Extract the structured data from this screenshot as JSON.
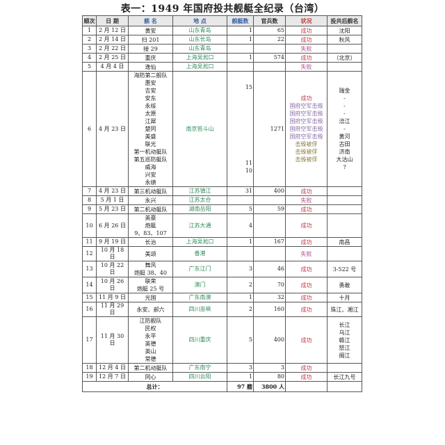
{
  "title": "表一：1949 年国府投共舰艇全纪录（台湾）",
  "headers": [
    "顺次",
    "日 期",
    "舰 名",
    "地 点",
    "舰艇数",
    "官兵数",
    "状况",
    "投共后舰名"
  ],
  "rows": [
    {
      "no": "1",
      "date": "2 月 12 日",
      "ships": [
        "黄安"
      ],
      "loc": "山东青岛",
      "count": "1",
      "troops": "65",
      "status": [
        "成功"
      ],
      "after": [
        "沈阳"
      ]
    },
    {
      "no": "2",
      "date": "2 月 14 日",
      "ships": [
        "扫 201"
      ],
      "loc": "山东长岛",
      "count": "1",
      "troops": "22",
      "status": [
        "成功"
      ],
      "after": [
        "秋风"
      ]
    },
    {
      "no": "3",
      "date": "2 月 22 日",
      "ships": [
        "接 29"
      ],
      "loc": "山东青岛",
      "count": "",
      "troops": "",
      "status": [
        "失败"
      ],
      "after": [
        ""
      ]
    },
    {
      "no": "4",
      "date": "2 月 25 日",
      "ships": [
        "重庆"
      ],
      "loc": "上海吴淞口",
      "count": "1",
      "troops": "574",
      "status": [
        "成功"
      ],
      "after": [
        "（北京）"
      ]
    },
    {
      "no": "5",
      "date": "4 月 4 日",
      "ships": [
        "逸仙"
      ],
      "loc": "上海吴淞口",
      "count": "",
      "troops": "",
      "status": [
        "失败"
      ],
      "after": [
        ""
      ]
    },
    {
      "no": "6",
      "date": "4 月 23 日",
      "ships": [
        "海防第二舰队",
        "惠安",
        "吉安",
        "安东",
        "永绥",
        "太原",
        "江犀",
        "楚同",
        "美盛",
        "联光",
        "第一机动艇队",
        "第五巡防艇队",
        "威海",
        "兴安",
        "永绩"
      ],
      "loc": "南京笆斗山",
      "count": [
        "15",
        "11",
        "10"
      ],
      "troops": "1271",
      "status": [
        "成功",
        "国府空军击毁",
        "国府空军击毁",
        "国府空军击毁",
        "国府空军击毁",
        "国府空军击毁",
        "击毁被俘",
        "击毁被俘",
        "击毁被俘"
      ],
      "after": [
        "瑞金",
        "-",
        "-",
        "-",
        "涪江",
        "-",
        "黄河",
        "古田",
        "济南",
        "大沽山",
        "?"
      ]
    },
    {
      "no": "7",
      "date": "4 月 23 日",
      "ships": [
        "第三机动艇队"
      ],
      "loc": "江苏镇江",
      "count": "31",
      "troops": "400",
      "status": [
        "成功"
      ],
      "after": [
        ""
      ]
    },
    {
      "no": "8",
      "date": "5 月 1 日",
      "ships": [
        "永兴"
      ],
      "loc": "江苏太仓",
      "count": "",
      "troops": "",
      "status": [
        "失败"
      ],
      "after": [
        ""
      ]
    },
    {
      "no": "9",
      "date": "5 月 23 日",
      "ships": [
        "第二机动艇队"
      ],
      "loc": "湖南岳阳",
      "count": "5",
      "troops": "59",
      "status": [
        "成功"
      ],
      "after": [
        ""
      ]
    },
    {
      "no": "10",
      "date": "6 月 26 日",
      "ships": [
        "英豪",
        "炮艇",
        "9、83、107"
      ],
      "loc": "江苏大通",
      "count": "4",
      "troops": "",
      "status": [
        "成功"
      ],
      "after": [
        ""
      ]
    },
    {
      "no": "11",
      "date": "9 月 19 日",
      "ships": [
        "长治"
      ],
      "loc": "上海吴淞口",
      "count": "1",
      "troops": "167",
      "status": [
        "成功"
      ],
      "after": [
        "南昌"
      ]
    },
    {
      "no": "12",
      "date": "10 月 18 日",
      "ships": [
        "美颂"
      ],
      "loc": "香港",
      "count": "",
      "troops": "",
      "status": [
        "失败"
      ],
      "after": [
        ""
      ]
    },
    {
      "no": "13",
      "date": "10 月 22 日",
      "ships": [
        "舞风",
        "炮艇 38、40"
      ],
      "loc": "广东江门",
      "count": "3",
      "troops": "46",
      "status": [
        "成功"
      ],
      "after": [
        "3-522 号"
      ]
    },
    {
      "no": "14",
      "date": "10 月 26 日",
      "ships": [
        "联荣",
        "炮艇 25 号"
      ],
      "loc": "澳门",
      "count": "2",
      "troops": "70",
      "status": [
        "成功"
      ],
      "after": [
        "勇敢"
      ]
    },
    {
      "no": "15",
      "date": "11 月 9 日",
      "ships": [
        "光国"
      ],
      "loc": "广东南澳",
      "count": "1",
      "troops": "32",
      "status": [
        "成功"
      ],
      "after": [
        "十月"
      ]
    },
    {
      "no": "16",
      "date": "11 月 29 日",
      "ships": [
        "永安、郝六"
      ],
      "loc": "四川巫峡",
      "count": "2",
      "troops": "160",
      "status": [
        "成功"
      ],
      "after": [
        "珠江、湘江"
      ]
    },
    {
      "no": "17",
      "date": "11 月 30 日",
      "ships": [
        "江防舰队",
        "民权",
        "永平",
        "英德",
        "英山",
        "常德"
      ],
      "loc": "四川重庆",
      "count": "5",
      "troops": "400",
      "status": [
        "成功"
      ],
      "after": [
        "长江",
        "乌江",
        "赣江",
        "怒江",
        "闽江"
      ]
    },
    {
      "no": "18",
      "date": "12 月 4 日",
      "ships": [
        "第二机动艇队"
      ],
      "loc": "广东南宁",
      "count": "3",
      "troops": "3",
      "status": [
        "成功"
      ],
      "after": [
        ""
      ]
    },
    {
      "no": "19",
      "date": "12 月 7 日",
      "ships": [
        "同心"
      ],
      "loc": "四川云阳",
      "count": "1",
      "troops": "80",
      "status": [
        "成功"
      ],
      "after": [
        "长江九号"
      ]
    }
  ],
  "total": {
    "label": "总计：",
    "count": "97 艘",
    "troops": "3800 人"
  }
}
